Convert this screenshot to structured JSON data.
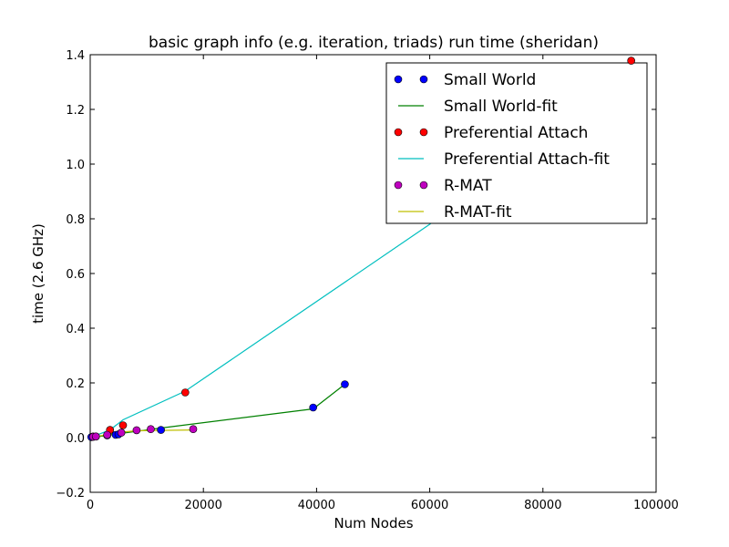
{
  "chart_data": {
    "type": "scatter",
    "title": "basic graph info (e.g. iteration, triads) run time (sheridan)",
    "xlabel": "Num Nodes",
    "ylabel": "time (2.6 GHz)",
    "xlim": [
      0,
      100000
    ],
    "ylim": [
      -0.2,
      1.4
    ],
    "xticks": [
      0,
      20000,
      40000,
      60000,
      80000,
      100000
    ],
    "yticks": [
      -0.2,
      0.0,
      0.2,
      0.4,
      0.6,
      0.8,
      1.0,
      1.2,
      1.4
    ],
    "ytick_labels": [
      "−0.2",
      "0.0",
      "0.2",
      "0.4",
      "0.6",
      "0.8",
      "1.0",
      "1.2",
      "1.4"
    ],
    "grid": false,
    "legend_position": "top-right",
    "series": [
      {
        "name": "Small World",
        "kind": "points",
        "color": "#0000ff",
        "x": [
          200,
          500,
          1000,
          3000,
          4500,
          5000,
          12500,
          39400,
          45000
        ],
        "y": [
          0.002,
          0.003,
          0.004,
          0.008,
          0.01,
          0.012,
          0.028,
          0.11,
          0.195
        ]
      },
      {
        "name": "Small World-fit",
        "kind": "line",
        "color": "#008000",
        "x": [
          0,
          3000,
          5000,
          12500,
          39400,
          45000
        ],
        "y": [
          0.0,
          0.008,
          0.014,
          0.035,
          0.105,
          0.195
        ]
      },
      {
        "name": "Preferential Attach",
        "kind": "points",
        "color": "#ff0000",
        "x": [
          500,
          3500,
          5800,
          16800,
          95600
        ],
        "y": [
          0.004,
          0.028,
          0.045,
          0.165,
          1.378
        ]
      },
      {
        "name": "Preferential Attach-fit",
        "kind": "line",
        "color": "#00bfbf",
        "x": [
          500,
          3500,
          5800,
          16800,
          60000,
          95600
        ],
        "y": [
          0.004,
          0.028,
          0.065,
          0.17,
          0.78,
          1.37
        ]
      },
      {
        "name": "R-MAT",
        "kind": "points",
        "color": "#bf00bf",
        "x": [
          500,
          1000,
          3000,
          5500,
          8200,
          10700,
          18200
        ],
        "y": [
          0.003,
          0.004,
          0.01,
          0.018,
          0.027,
          0.031,
          0.031
        ]
      },
      {
        "name": "R-MAT-fit",
        "kind": "line",
        "color": "#bfbf00",
        "x": [
          0,
          5500,
          8200,
          18200
        ],
        "y": [
          0.0,
          0.02,
          0.025,
          0.028
        ]
      }
    ]
  }
}
